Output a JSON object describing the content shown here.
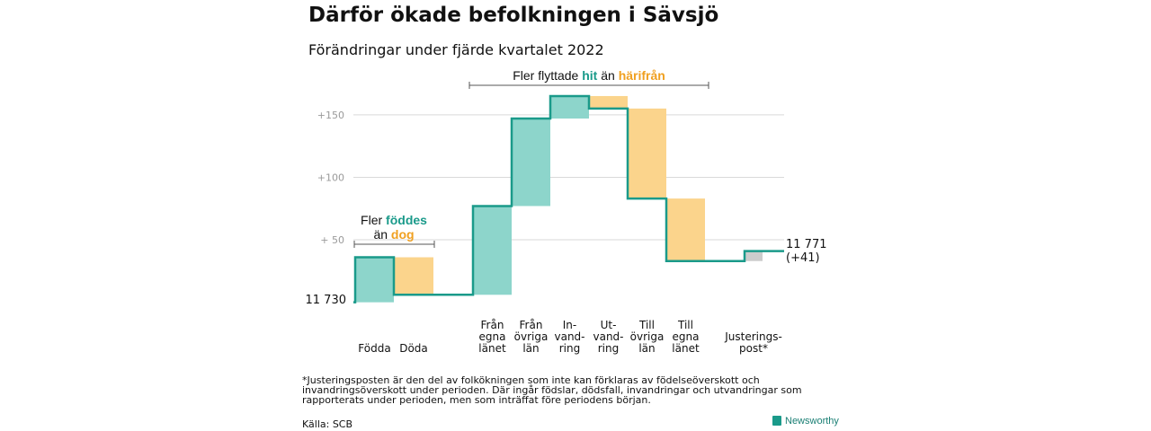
{
  "title": "Därför ökade befolkningen i Sävsjö",
  "subtitle": "Förändringar under fjärde kvartalet 2022",
  "footnote": "*Justeringsposten är den del av folkökningen som inte kan förklaras av födelseöverskott och invandringsöverskott under perioden. Där ingår födslar, dödsfall, invandringar och utvandringar som rapporterats under perioden, men som inträffat före periodens början.",
  "source": "Källa: SCB",
  "brand": "Newsworthy",
  "colors": {
    "increase": "#8dd5cb",
    "decrease": "#fbd48c",
    "adjustment": "#cccccc",
    "line": "#1a9a8a",
    "grid": "#d9d9d9",
    "teal_text": "#1a9a8a",
    "orange_text": "#f0a020"
  },
  "annotations": {
    "births_deaths": {
      "line1_prefix": "Fler ",
      "line1_highlight": "föddes",
      "line2_prefix": "än ",
      "line2_highlight": "dog"
    },
    "migration": {
      "prefix": "Fler flyttade ",
      "highlight1": "hit",
      "middle": " än ",
      "highlight2": "härifrån"
    }
  },
  "chart_data": {
    "type": "waterfall",
    "start_label": "11 730",
    "end_label": [
      "11 771",
      "(+41)"
    ],
    "y_ticks": [
      {
        "value": 50,
        "label": "+ 50"
      },
      {
        "value": 100,
        "label": "+100"
      },
      {
        "value": 150,
        "label": "+150"
      }
    ],
    "ylim": [
      -6,
      170
    ],
    "categories": [
      {
        "label": [
          "Födda"
        ],
        "start": 0,
        "end": 36,
        "kind": "increase"
      },
      {
        "label": [
          "Döda"
        ],
        "start": 36,
        "end": 6,
        "kind": "decrease"
      },
      {
        "label": [
          "Från",
          "egna",
          "länet"
        ],
        "start": 6,
        "end": 77,
        "kind": "increase"
      },
      {
        "label": [
          "Från",
          "övriga",
          "län"
        ],
        "start": 77,
        "end": 147,
        "kind": "increase"
      },
      {
        "label": [
          "In-",
          "vand-",
          "ring"
        ],
        "start": 147,
        "end": 165,
        "kind": "increase"
      },
      {
        "label": [
          "Ut-",
          "vand-",
          "ring"
        ],
        "start": 165,
        "end": 155,
        "kind": "decrease"
      },
      {
        "label": [
          "Till",
          "övriga",
          "län"
        ],
        "start": 155,
        "end": 83,
        "kind": "decrease"
      },
      {
        "label": [
          "Till",
          "egna",
          "länet"
        ],
        "start": 83,
        "end": 33,
        "kind": "decrease"
      },
      {
        "label": [
          "Justerings-",
          "post*"
        ],
        "start": 33,
        "end": 41,
        "kind": "adjustment"
      }
    ]
  }
}
